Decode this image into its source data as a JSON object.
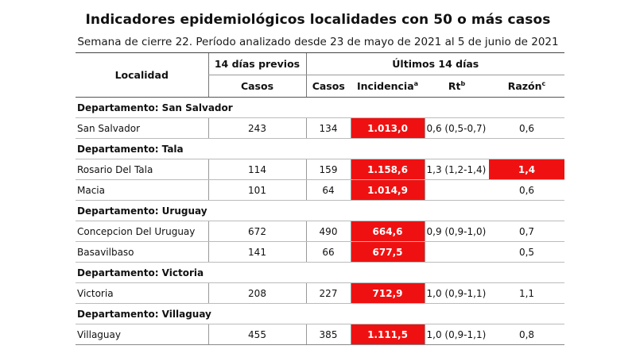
{
  "title": "Indicadores epidemiológicos localidades con 50 o más casos",
  "subtitle": "Semana de cierre 22. Período analizado desde 23 de mayo de 2021 al 5 de junio de 2021",
  "colors": {
    "highlight": "#ef1111",
    "text": "#111111"
  },
  "header": {
    "localidad": "Localidad",
    "prev_group": "14 días previos",
    "last_group": "Últimos 14 días",
    "casos_prev": "Casos",
    "casos": "Casos",
    "incidencia": "Incidencia",
    "incidencia_sup": "a",
    "rt": "Rt",
    "rt_sup": "b",
    "razon": "Razón",
    "razon_sup": "c"
  },
  "departments": [
    {
      "label": "Departamento: San Salvador",
      "rows": [
        {
          "name": "San Salvador",
          "prev": "243",
          "casos": "134",
          "incidencia": "1.013,0",
          "rt": "0,6 (0,5-0,7)",
          "razon": "0,6",
          "razon_high": false
        }
      ]
    },
    {
      "label": "Departamento: Tala",
      "rows": [
        {
          "name": "Rosario Del Tala",
          "prev": "114",
          "casos": "159",
          "incidencia": "1.158,6",
          "rt": "1,3 (1,2-1,4)",
          "razon": "1,4",
          "razon_high": true
        },
        {
          "name": "Macia",
          "prev": "101",
          "casos": "64",
          "incidencia": "1.014,9",
          "rt": "",
          "razon": "0,6",
          "razon_high": false
        }
      ]
    },
    {
      "label": "Departamento: Uruguay",
      "rows": [
        {
          "name": "Concepcion Del Uruguay",
          "prev": "672",
          "casos": "490",
          "incidencia": "664,6",
          "rt": "0,9 (0,9-1,0)",
          "razon": "0,7",
          "razon_high": false
        },
        {
          "name": "Basavilbaso",
          "prev": "141",
          "casos": "66",
          "incidencia": "677,5",
          "rt": "",
          "razon": "0,5",
          "razon_high": false
        }
      ]
    },
    {
      "label": "Departamento: Victoria",
      "rows": [
        {
          "name": "Victoria",
          "prev": "208",
          "casos": "227",
          "incidencia": "712,9",
          "rt": "1,0 (0,9-1,1)",
          "razon": "1,1",
          "razon_high": false
        }
      ]
    },
    {
      "label": "Departamento: Villaguay",
      "rows": [
        {
          "name": "Villaguay",
          "prev": "455",
          "casos": "385",
          "incidencia": "1.111,5",
          "rt": "1,0 (0,9-1,1)",
          "razon": "0,8",
          "razon_high": false
        }
      ]
    }
  ]
}
